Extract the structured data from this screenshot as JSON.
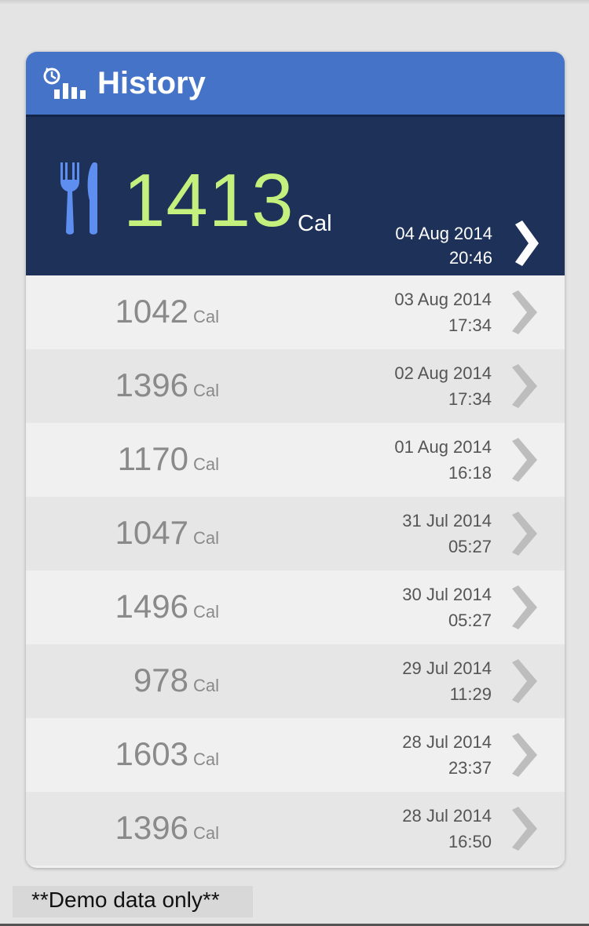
{
  "header": {
    "title": "History",
    "icon": "history-chart-icon",
    "color": "#4573c8"
  },
  "latest": {
    "value": "1413",
    "unit": "Cal",
    "date": "04 Aug 2014",
    "time": "20:46",
    "icon": "fork-knife-icon",
    "background": "#1e3158",
    "value_color": "#c4f07e"
  },
  "entries": [
    {
      "value": "1042",
      "unit": "Cal",
      "date": "03 Aug 2014",
      "time": "17:34"
    },
    {
      "value": "1396",
      "unit": "Cal",
      "date": "02 Aug 2014",
      "time": "17:34"
    },
    {
      "value": "1170",
      "unit": "Cal",
      "date": "01 Aug 2014",
      "time": "16:18"
    },
    {
      "value": "1047",
      "unit": "Cal",
      "date": "31 Jul 2014",
      "time": "05:27"
    },
    {
      "value": "1496",
      "unit": "Cal",
      "date": "30 Jul 2014",
      "time": "05:27"
    },
    {
      "value": "978",
      "unit": "Cal",
      "date": "29 Jul 2014",
      "time": "11:29"
    },
    {
      "value": "1603",
      "unit": "Cal",
      "date": "28 Jul 2014",
      "time": "23:37"
    },
    {
      "value": "1396",
      "unit": "Cal",
      "date": "28 Jul 2014",
      "time": "16:50"
    }
  ],
  "footer": {
    "note": "**Demo data only**"
  }
}
